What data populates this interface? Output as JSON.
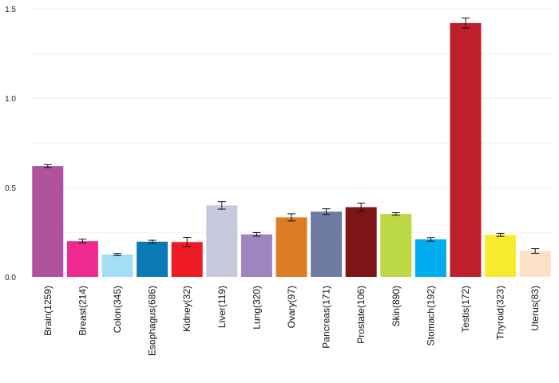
{
  "chart_data": {
    "type": "bar",
    "title": "",
    "xlabel": "",
    "ylabel": "",
    "ylim": [
      0,
      1.55
    ],
    "yticks": [
      0.0,
      0.5,
      1.0,
      1.5
    ],
    "ytick_labels": [
      "0.0",
      "0.5",
      "1.0",
      "1.5"
    ],
    "grid": true,
    "legend": "none",
    "categories": [
      "Brain(1259)",
      "Breast(214)",
      "Colon(345)",
      "Esophagus(686)",
      "Kidney(32)",
      "Liver(119)",
      "Lung(320)",
      "Ovary(97)",
      "Pancreas(171)",
      "Prostate(106)",
      "Skin(890)",
      "Stomach(192)",
      "Testis(172)",
      "Thyroid(323)",
      "Uterus(83)"
    ],
    "values": [
      0.62,
      0.2,
      0.125,
      0.197,
      0.195,
      0.4,
      0.238,
      0.333,
      0.365,
      0.39,
      0.352,
      0.21,
      1.42,
      0.235,
      0.145
    ],
    "errors": [
      0.008,
      0.011,
      0.006,
      0.008,
      0.026,
      0.021,
      0.01,
      0.02,
      0.016,
      0.023,
      0.007,
      0.01,
      0.028,
      0.008,
      0.013
    ],
    "colors": [
      "#B0519E",
      "#EE2A90",
      "#A3DDF6",
      "#0A7AB4",
      "#ED1C24",
      "#C8C8DC",
      "#A084C0",
      "#DC7D26",
      "#6E7BA2",
      "#7D1517",
      "#BCD844",
      "#00AEEF",
      "#BD1F2D",
      "#F7EA2F",
      "#FCE1C4"
    ]
  }
}
